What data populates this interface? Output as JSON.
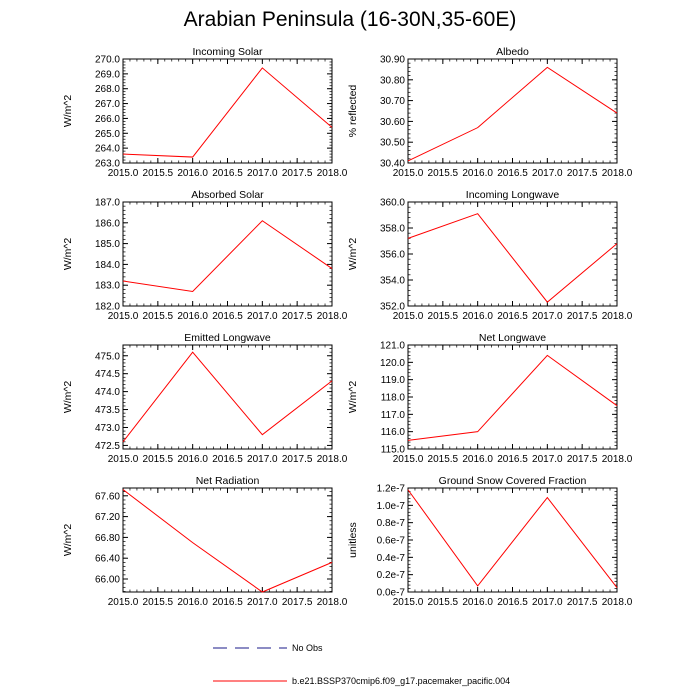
{
  "title": "Arabian Peninsula (16-30N,35-60E)",
  "colors": {
    "model_line": "#ff0000",
    "obs_line": "#1a1a8a",
    "axis": "#000000"
  },
  "legend": {
    "obs_label": "No Obs",
    "model_label": "b.e21.BSSP370cmip6.f09_g17.pacemaker_pacific.004"
  },
  "chart_data": [
    {
      "type": "line",
      "title": "Incoming Solar",
      "ylabel": "W/m^2",
      "x": [
        2015,
        2016,
        2017,
        2018
      ],
      "y": [
        263.6,
        263.4,
        269.4,
        265.4
      ],
      "xlim": [
        2015,
        2018
      ],
      "ylim": [
        263.0,
        270.0
      ],
      "xticks": [
        "2015.0",
        "2015.5",
        "2016.0",
        "2016.5",
        "2017.0",
        "2017.5",
        "2018.0"
      ],
      "yticks": [
        "263.0",
        "264.0",
        "265.0",
        "266.0",
        "267.0",
        "268.0",
        "269.0",
        "270.0"
      ],
      "ytick_values": [
        263,
        264,
        265,
        266,
        267,
        268,
        269,
        270
      ]
    },
    {
      "type": "line",
      "title": "Albedo",
      "ylabel": "% reflected",
      "x": [
        2015,
        2016,
        2017,
        2018
      ],
      "y": [
        30.41,
        30.57,
        30.86,
        30.64
      ],
      "xlim": [
        2015,
        2018
      ],
      "ylim": [
        30.4,
        30.9
      ],
      "xticks": [
        "2015.0",
        "2015.5",
        "2016.0",
        "2016.5",
        "2017.0",
        "2017.5",
        "2018.0"
      ],
      "yticks": [
        "30.40",
        "30.50",
        "30.60",
        "30.70",
        "30.80",
        "30.90"
      ],
      "ytick_values": [
        30.4,
        30.5,
        30.6,
        30.7,
        30.8,
        30.9
      ]
    },
    {
      "type": "line",
      "title": "Absorbed Solar",
      "ylabel": "W/m^2",
      "x": [
        2015,
        2016,
        2017,
        2018
      ],
      "y": [
        183.2,
        182.7,
        186.1,
        183.8
      ],
      "xlim": [
        2015,
        2018
      ],
      "ylim": [
        182.0,
        187.0
      ],
      "xticks": [
        "2015.0",
        "2015.5",
        "2016.0",
        "2016.5",
        "2017.0",
        "2017.5",
        "2018.0"
      ],
      "yticks": [
        "182.0",
        "183.0",
        "184.0",
        "185.0",
        "186.0",
        "187.0"
      ],
      "ytick_values": [
        182,
        183,
        184,
        185,
        186,
        187
      ]
    },
    {
      "type": "line",
      "title": "Incoming Longwave",
      "ylabel": "W/m^2",
      "x": [
        2015,
        2016,
        2017,
        2018
      ],
      "y": [
        357.2,
        359.1,
        352.3,
        356.8
      ],
      "xlim": [
        2015,
        2018
      ],
      "ylim": [
        352.0,
        360.0
      ],
      "xticks": [
        "2015.0",
        "2015.5",
        "2016.0",
        "2016.5",
        "2017.0",
        "2017.5",
        "2018.0"
      ],
      "yticks": [
        "352.0",
        "354.0",
        "356.0",
        "358.0",
        "360.0"
      ],
      "ytick_values": [
        352,
        354,
        356,
        358,
        360
      ]
    },
    {
      "type": "line",
      "title": "Emitted Longwave",
      "ylabel": "W/m^2",
      "x": [
        2015,
        2016,
        2017,
        2018
      ],
      "y": [
        472.6,
        475.1,
        472.8,
        474.3
      ],
      "xlim": [
        2015,
        2018
      ],
      "ylim": [
        472.4,
        475.3
      ],
      "xticks": [
        "2015.0",
        "2015.5",
        "2016.0",
        "2016.5",
        "2017.0",
        "2017.5",
        "2018.0"
      ],
      "yticks": [
        "472.5",
        "473.0",
        "473.5",
        "474.0",
        "474.5",
        "475.0"
      ],
      "ytick_values": [
        472.5,
        473,
        473.5,
        474,
        474.5,
        475
      ]
    },
    {
      "type": "line",
      "title": "Net Longwave",
      "ylabel": "W/m^2",
      "x": [
        2015,
        2016,
        2017,
        2018
      ],
      "y": [
        115.5,
        116.0,
        120.4,
        117.5
      ],
      "xlim": [
        2015,
        2018
      ],
      "ylim": [
        115.0,
        121.0
      ],
      "xticks": [
        "2015.0",
        "2015.5",
        "2016.0",
        "2016.5",
        "2017.0",
        "2017.5",
        "2018.0"
      ],
      "yticks": [
        "115.0",
        "116.0",
        "117.0",
        "118.0",
        "119.0",
        "120.0",
        "121.0"
      ],
      "ytick_values": [
        115,
        116,
        117,
        118,
        119,
        120,
        121
      ]
    },
    {
      "type": "line",
      "title": "Net Radiation",
      "ylabel": "W/m^2",
      "x": [
        2015,
        2016,
        2017,
        2018
      ],
      "y": [
        67.72,
        66.7,
        65.75,
        66.32
      ],
      "xlim": [
        2015,
        2018
      ],
      "ylim": [
        65.75,
        67.75
      ],
      "xticks": [
        "2015.0",
        "2015.5",
        "2016.0",
        "2016.5",
        "2017.0",
        "2017.5",
        "2018.0"
      ],
      "yticks": [
        "66.00",
        "66.40",
        "66.80",
        "67.20",
        "67.60"
      ],
      "ytick_values": [
        66.0,
        66.4,
        66.8,
        67.2,
        67.6
      ]
    },
    {
      "type": "line",
      "title": "Ground Snow Covered Fraction",
      "ylabel": "unitless",
      "x": [
        2015,
        2016,
        2017,
        2018
      ],
      "y": [
        1.18e-07,
        7e-09,
        1.09e-07,
        5e-09
      ],
      "xlim": [
        2015,
        2018
      ],
      "ylim": [
        0,
        1.2e-07
      ],
      "xticks": [
        "2015.0",
        "2015.5",
        "2016.0",
        "2016.5",
        "2017.0",
        "2017.5",
        "2018.0"
      ],
      "yticks": [
        "0.0e-7",
        "0.2e-7",
        "0.4e-7",
        "0.6e-7",
        "0.8e-7",
        "1.0e-7",
        "1.2e-7"
      ],
      "ytick_values": [
        0,
        2e-08,
        4e-08,
        6e-08,
        8e-08,
        1e-07,
        1.2e-07
      ]
    }
  ]
}
